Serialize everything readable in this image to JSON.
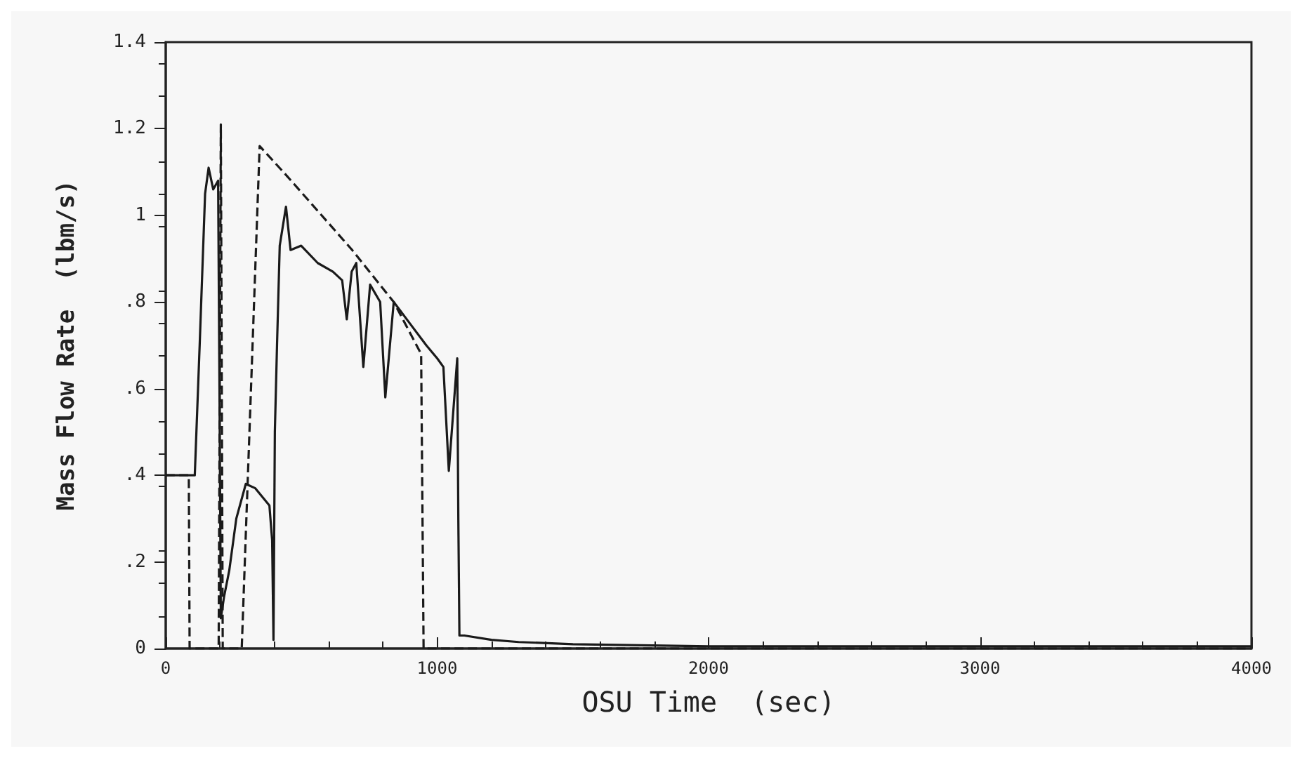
{
  "chart_data": {
    "type": "line",
    "xlabel": "OSU Time  (sec)",
    "ylabel": "Mass Flow Rate  (lbm/s)",
    "xlim": [
      0,
      4000
    ],
    "xticks": [
      0,
      1000,
      2000,
      3000,
      4000
    ],
    "ylim": [
      0,
      1.4
    ],
    "yticks": [
      {
        "value": 0,
        "label": "0"
      },
      {
        "value": 0.2,
        "label": ".2"
      },
      {
        "value": 0.4,
        "label": ".4"
      },
      {
        "value": 0.6,
        "label": ".6"
      },
      {
        "value": 0.8,
        "label": ".8"
      },
      {
        "value": 1,
        "label": "1"
      },
      {
        "value": 1.2,
        "label": "1.2"
      },
      {
        "value": 1.4,
        "label": "1.4"
      }
    ],
    "grid": false,
    "marker": "none",
    "series": [
      {
        "color": "#1a1a1a",
        "line_style": "solid",
        "x": [
          0,
          107,
          125,
          145,
          158,
          175,
          193,
          198,
          203,
          215,
          234,
          260,
          295,
          330,
          382,
          392,
          397,
          402,
          410,
          420,
          443,
          460,
          499,
          560,
          616,
          650,
          667,
          685,
          702,
          728,
          753,
          790,
          809,
          840,
          900,
          960,
          1000,
          1023,
          1043,
          1074,
          1078,
          1082,
          1100,
          1200,
          1300,
          1500,
          2000,
          2500,
          3000,
          3500,
          4000
        ],
        "values": [
          0.4,
          0.4,
          0.7,
          1.05,
          1.11,
          1.06,
          1.08,
          0.6,
          0.07,
          0.12,
          0.18,
          0.3,
          0.38,
          0.37,
          0.33,
          0.25,
          0.02,
          0.5,
          0.7,
          0.93,
          1.02,
          0.92,
          0.93,
          0.89,
          0.87,
          0.85,
          0.76,
          0.87,
          0.89,
          0.65,
          0.84,
          0.8,
          0.58,
          0.8,
          0.75,
          0.7,
          0.67,
          0.65,
          0.41,
          0.67,
          0.3,
          0.03,
          0.03,
          0.02,
          0.015,
          0.01,
          0.005,
          0.005,
          0.005,
          0.005,
          0.005
        ]
      },
      {
        "color": "#1a1a1a",
        "line_style": "dashed",
        "x": [
          0,
          85,
          88,
          195,
          203,
          210,
          280,
          346,
          448,
          687,
          840,
          941,
          950,
          4000
        ],
        "values": [
          0.4,
          0.4,
          0,
          0,
          1.21,
          0,
          0,
          1.16,
          1.09,
          0.92,
          0.8,
          0.68,
          0,
          0
        ]
      }
    ]
  }
}
